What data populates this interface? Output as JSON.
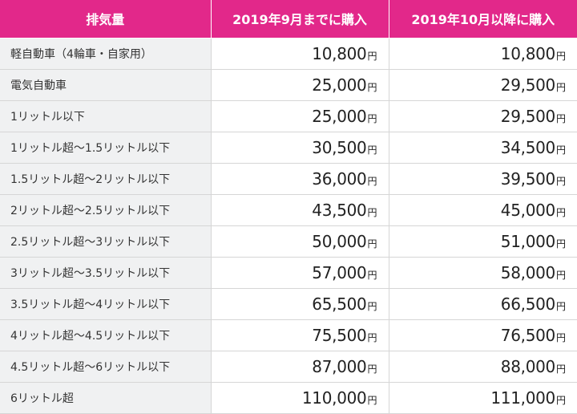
{
  "table": {
    "headers": [
      "排気量",
      "2019年9月までに購入",
      "2019年10月以降に購入"
    ],
    "unit": "円",
    "rows": [
      {
        "category": "軽自動車（4輪車・自家用）",
        "before": "10,800",
        "after": "10,800"
      },
      {
        "category": "電気自動車",
        "before": "25,000",
        "after": "29,500"
      },
      {
        "category": "1リットル以下",
        "before": "25,000",
        "after": "29,500"
      },
      {
        "category": "1リットル超〜1.5リットル以下",
        "before": "30,500",
        "after": "34,500"
      },
      {
        "category": "1.5リットル超〜2リットル以下",
        "before": "36,000",
        "after": "39,500"
      },
      {
        "category": "2リットル超〜2.5リットル以下",
        "before": "43,500",
        "after": "45,000"
      },
      {
        "category": "2.5リットル超〜3リットル以下",
        "before": "50,000",
        "after": "51,000"
      },
      {
        "category": "3リットル超〜3.5リットル以下",
        "before": "57,000",
        "after": "58,000"
      },
      {
        "category": "3.5リットル超〜4リットル以下",
        "before": "65,500",
        "after": "66,500"
      },
      {
        "category": "4リットル超〜4.5リットル以下",
        "before": "75,500",
        "after": "76,500"
      },
      {
        "category": "4.5リットル超〜6リットル以下",
        "before": "87,000",
        "after": "88,000"
      },
      {
        "category": "6リットル超",
        "before": "110,000",
        "after": "111,000"
      }
    ]
  },
  "colors": {
    "header_background": "#e2288a",
    "header_text": "#ffffff",
    "label_background": "#f0f1f2",
    "border": "#d6d6d6"
  }
}
